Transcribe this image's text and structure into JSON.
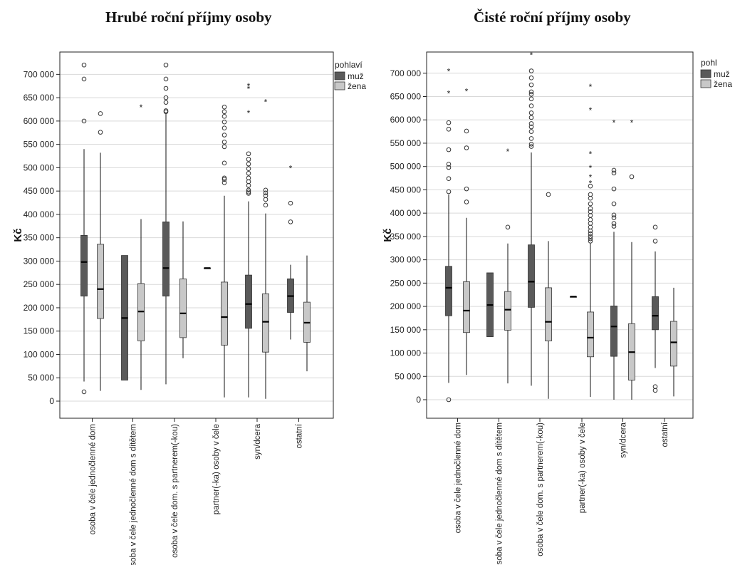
{
  "chart_data": [
    {
      "type": "boxplot",
      "title": "Hrubé roční příjmy osoby",
      "ylabel": "Kč",
      "ylim": [
        -40000,
        740000
      ],
      "yticks": [
        0,
        50000,
        100000,
        150000,
        200000,
        250000,
        300000,
        350000,
        400000,
        450000,
        500000,
        550000,
        600000,
        650000,
        700000
      ],
      "ytick_labels": [
        "0",
        "50 000",
        "100 000",
        "150 000",
        "200 000",
        "250 000",
        "300 000",
        "350 000",
        "400 000",
        "450 000",
        "500 000",
        "550 000",
        "600 000",
        "650 000",
        "700 000"
      ],
      "grid": true,
      "legend": {
        "title": "pohlaví",
        "entries": [
          "muž",
          "žena"
        ],
        "position": "top-right"
      },
      "categories": [
        "osoba v čele jednočlenné dom",
        "osoba v čele jednočlenné dom s dítětem",
        "osoba v čele dom. s partnerem(-kou)",
        "partner(-ka) osoby v čele",
        "syn/dcera",
        "ostatní"
      ],
      "series": [
        {
          "name": "muž",
          "color": "#5a5a5a",
          "boxes": [
            {
              "min": 42000,
              "q1": 225000,
              "median": 298000,
              "q3": 355000,
              "max": 540000,
              "outliers": [
                20000,
                600000,
                690000,
                720000
              ],
              "extremes": []
            },
            {
              "min": 45000,
              "q1": 45000,
              "median": 178000,
              "q3": 312000,
              "max": 312000,
              "outliers": [],
              "extremes": []
            },
            {
              "min": 36000,
              "q1": 225000,
              "median": 285000,
              "q3": 384000,
              "max": 615000,
              "outliers": [
                620000,
                622000,
                640000,
                650000,
                670000,
                690000,
                720000
              ],
              "extremes": []
            },
            {
              "min": 285000,
              "q1": 285000,
              "median": 285000,
              "q3": 285000,
              "max": 285000,
              "outliers": [],
              "extremes": []
            },
            {
              "min": 8000,
              "q1": 156000,
              "median": 208000,
              "q3": 270000,
              "max": 428000,
              "outliers": [
                445000,
                448000,
                452000,
                462000,
                470000,
                478000,
                488000,
                498000,
                508000,
                518000,
                530000
              ],
              "extremes": [
                618000,
                670000,
                676000
              ]
            },
            {
              "min": 132000,
              "q1": 190000,
              "median": 225000,
              "q3": 262000,
              "max": 292000,
              "outliers": [
                384000,
                424000
              ],
              "extremes": [
                500000
              ]
            }
          ]
        },
        {
          "name": "žena",
          "color": "#c8c8c8",
          "boxes": [
            {
              "min": 22000,
              "q1": 177000,
              "median": 240000,
              "q3": 336000,
              "max": 532000,
              "outliers": [
                576000,
                616000
              ],
              "extremes": []
            },
            {
              "min": 24000,
              "q1": 129000,
              "median": 192000,
              "q3": 252000,
              "max": 390000,
              "outliers": [],
              "extremes": [
                630000
              ]
            },
            {
              "min": 92000,
              "q1": 136000,
              "median": 188000,
              "q3": 262000,
              "max": 385000,
              "outliers": [],
              "extremes": []
            },
            {
              "min": 8000,
              "q1": 120000,
              "median": 180000,
              "q3": 255000,
              "max": 440000,
              "outliers": [
                468000,
                475000,
                478000,
                510000,
                545000,
                555000,
                570000,
                585000,
                598000,
                610000,
                620000,
                630000
              ],
              "extremes": []
            },
            {
              "min": 5000,
              "q1": 105000,
              "median": 170000,
              "q3": 230000,
              "max": 402000,
              "outliers": [
                420000,
                432000,
                440000,
                446000,
                452000
              ],
              "extremes": [
                642000
              ]
            },
            {
              "min": 64000,
              "q1": 126000,
              "median": 168000,
              "q3": 212000,
              "max": 312000,
              "outliers": [],
              "extremes": []
            }
          ]
        }
      ]
    },
    {
      "type": "boxplot",
      "title": "Čisté roční příjmy osoby",
      "ylabel": "Kč",
      "ylim": [
        -40000,
        745000
      ],
      "yticks": [
        0,
        50000,
        100000,
        150000,
        200000,
        250000,
        300000,
        350000,
        400000,
        450000,
        500000,
        550000,
        600000,
        650000,
        700000
      ],
      "ytick_labels": [
        "0",
        "50 000",
        "100 000",
        "150 000",
        "200 000",
        "250 000",
        "300 000",
        "350 000",
        "400 000",
        "450 000",
        "500 000",
        "550 000",
        "600 000",
        "650 000",
        "700 000"
      ],
      "grid": true,
      "legend": {
        "title": "pohl",
        "entries": [
          "muž",
          "žena"
        ],
        "position": "top-right"
      },
      "categories": [
        "osoba v čele jednočlenné dom",
        "osoba v čele jednočlenné dom s dítětem",
        "osoba v čele dom. s partnerem(-kou)",
        "partner(-ka) osoby v čele",
        "syn/dcera",
        "ostatní"
      ],
      "series": [
        {
          "name": "muž",
          "color": "#5a5a5a",
          "boxes": [
            {
              "min": 36000,
              "q1": 180000,
              "median": 240000,
              "q3": 286000,
              "max": 440000,
              "outliers": [
                0,
                446000,
                474000,
                498000,
                505000,
                536000,
                580000,
                594000
              ],
              "extremes": [
                658000,
                705000
              ]
            },
            {
              "min": 135000,
              "q1": 135000,
              "median": 203000,
              "q3": 272000,
              "max": 272000,
              "outliers": [],
              "extremes": []
            },
            {
              "min": 30000,
              "q1": 198000,
              "median": 253000,
              "q3": 332000,
              "max": 530000,
              "outliers": [
                543000,
                548000,
                560000,
                575000,
                585000,
                592000,
                605000,
                615000,
                630000,
                645000,
                655000,
                660000,
                675000,
                690000,
                705000
              ],
              "extremes": [
                740000
              ]
            },
            {
              "min": 221000,
              "q1": 221000,
              "median": 221000,
              "q3": 221000,
              "max": 221000,
              "outliers": [],
              "extremes": []
            },
            {
              "min": 0,
              "q1": 93000,
              "median": 157000,
              "q3": 201000,
              "max": 360000,
              "outliers": [
                372000,
                378000,
                390000,
                396000,
                420000,
                452000,
                486000,
                492000
              ],
              "extremes": [
                595000
              ]
            },
            {
              "min": 68000,
              "q1": 150000,
              "median": 180000,
              "q3": 221000,
              "max": 318000,
              "outliers": [
                20000,
                28000,
                340000,
                370000
              ],
              "extremes": []
            }
          ]
        },
        {
          "name": "žena",
          "color": "#c8c8c8",
          "boxes": [
            {
              "min": 53000,
              "q1": 144000,
              "median": 191000,
              "q3": 253000,
              "max": 390000,
              "outliers": [
                424000,
                452000,
                540000,
                576000
              ],
              "extremes": [
                662000
              ]
            },
            {
              "min": 35000,
              "q1": 149000,
              "median": 193000,
              "q3": 232000,
              "max": 335000,
              "outliers": [
                370000
              ],
              "extremes": [
                533000
              ]
            },
            {
              "min": 2000,
              "q1": 126000,
              "median": 167000,
              "q3": 240000,
              "max": 340000,
              "outliers": [
                440000
              ],
              "extremes": []
            },
            {
              "min": 6000,
              "q1": 92000,
              "median": 133000,
              "q3": 188000,
              "max": 335000,
              "outliers": [
                340000,
                345000,
                350000,
                356000,
                362000,
                370000,
                378000,
                386000,
                395000,
                403000,
                410000,
                420000,
                432000,
                440000,
                458000
              ],
              "extremes": [
                465000,
                478000,
                498000,
                528000,
                622000,
                672000
              ]
            },
            {
              "min": 0,
              "q1": 42000,
              "median": 102000,
              "q3": 163000,
              "max": 338000,
              "outliers": [
                478000
              ],
              "extremes": [
                595000
              ]
            },
            {
              "min": 7000,
              "q1": 72000,
              "median": 123000,
              "q3": 168000,
              "max": 240000,
              "outliers": [],
              "extremes": []
            }
          ]
        }
      ]
    }
  ]
}
